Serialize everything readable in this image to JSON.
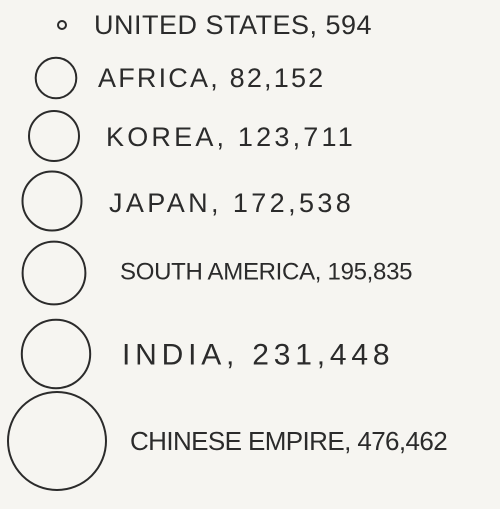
{
  "chart_data": {
    "type": "proportional-circle",
    "encoding": "circle area proportional to value",
    "colors": {
      "ink": "#2b2b2b",
      "paper": "#f6f5f1"
    },
    "items": [
      {
        "name": "UNITED STATES",
        "value": 594,
        "label": "UNITED STATES, 594"
      },
      {
        "name": "AFRICA",
        "value": 82152,
        "label": "AFRICA, 82,152"
      },
      {
        "name": "KOREA",
        "value": 123711,
        "label": "KOREA, 123,711"
      },
      {
        "name": "JAPAN",
        "value": 172538,
        "label": "JAPAN, 172,538"
      },
      {
        "name": "SOUTH AMERICA",
        "value": 195835,
        "label": "SOUTH AMERICA, 195,835"
      },
      {
        "name": "INDIA",
        "value": 231448,
        "label": "INDIA, 231,448"
      },
      {
        "name": "CHINESE EMPIRE",
        "value": 476462,
        "label": "CHINESE EMPIRE, 476,462"
      }
    ]
  }
}
